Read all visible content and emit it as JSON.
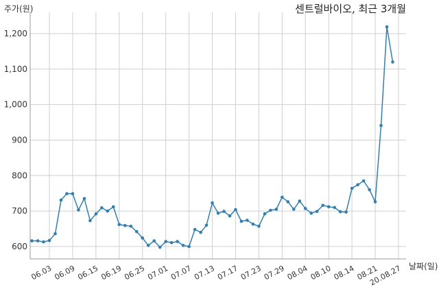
{
  "chart_data": {
    "type": "line",
    "title": "센트럴바이오, 최근 3개월",
    "ylabel": "주가(원)",
    "xlabel": "날짜(일)",
    "ylim": [
      565,
      1260
    ],
    "yticks": [
      600,
      700,
      800,
      900,
      1000,
      1100,
      1200
    ],
    "ytick_labels": [
      "600",
      "700",
      "800",
      "900",
      "1,000",
      "1,100",
      "1,200"
    ],
    "grid": true,
    "xtick_labels": [
      "06.03",
      "06.09",
      "06.15",
      "06.19",
      "06.25",
      "07.01",
      "07.07",
      "07.13",
      "07.17",
      "07.23",
      "07.29",
      "08.04",
      "08.10",
      "08.14",
      "08.21",
      "20.08.27"
    ],
    "xtick_positions": [
      3,
      7,
      11,
      15,
      19,
      23,
      27,
      31,
      35,
      39,
      43,
      47,
      51,
      55,
      59,
      63
    ],
    "color": "#2e7fb8",
    "values": [
      616,
      616,
      613,
      617,
      636,
      731,
      749,
      749,
      703,
      735,
      673,
      692,
      709,
      700,
      712,
      662,
      659,
      657,
      642,
      624,
      603,
      616,
      598,
      614,
      611,
      614,
      603,
      600,
      648,
      640,
      660,
      723,
      694,
      699,
      686,
      704,
      671,
      674,
      663,
      657,
      692,
      702,
      705,
      739,
      726,
      705,
      728,
      707,
      694,
      699,
      716,
      712,
      710,
      698,
      697,
      764,
      774,
      785,
      760,
      726,
      941,
      1219,
      1120
    ]
  }
}
